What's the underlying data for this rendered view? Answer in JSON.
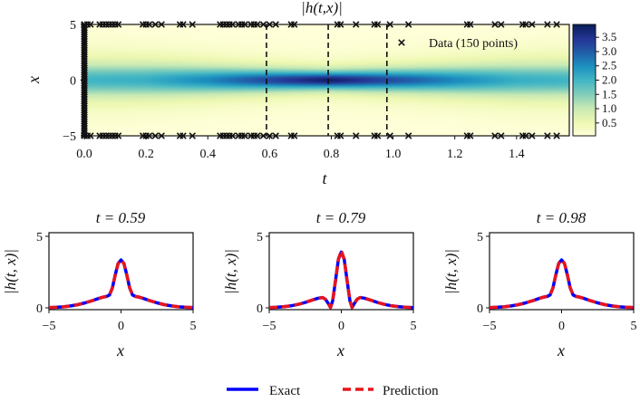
{
  "chart_data": [
    {
      "type": "heatmap",
      "title": "|h(t,x)|",
      "xlabel": "t",
      "ylabel": "x",
      "xlim": [
        0,
        1.5708
      ],
      "ylim": [
        -5,
        5
      ],
      "xticks": [
        0.0,
        0.2,
        0.4,
        0.6,
        0.8,
        1.0,
        1.2,
        1.4
      ],
      "xtick_labels": [
        "0.0",
        "0.2",
        "0.4",
        "0.6",
        "0.8",
        "1.0",
        "1.2",
        "1.4"
      ],
      "yticks": [
        5,
        0,
        -5
      ],
      "ytick_labels": [
        "5",
        "0",
        "−5"
      ],
      "colormap": "YlGnBu",
      "colorbar": {
        "range": [
          0.05,
          3.95
        ],
        "ticks": [
          0.5,
          1.0,
          1.5,
          2.0,
          2.5,
          3.0,
          3.5
        ],
        "tick_labels": [
          "0.5",
          "1.0",
          "1.5",
          "2.0",
          "2.5",
          "3.0",
          "3.5"
        ]
      },
      "peak_amplitude_along_x0": {
        "t": [
          0,
          0.2,
          0.4,
          0.59,
          0.79,
          0.98,
          1.2,
          1.4,
          1.5708
        ],
        "value": [
          2.0,
          2.1,
          2.6,
          3.3,
          4.0,
          3.3,
          2.6,
          2.1,
          2.0
        ]
      },
      "slice_lines_t": [
        0.59,
        0.79,
        0.98
      ],
      "legend": {
        "label": "Data (150 points)",
        "marker": "x",
        "position": "top-right"
      },
      "data_points": {
        "boundary_t": [
          0.0,
          0.01,
          0.02,
          0.05,
          0.06,
          0.07,
          0.08,
          0.09,
          0.1,
          0.11,
          0.19,
          0.2,
          0.21,
          0.23,
          0.25,
          0.31,
          0.32,
          0.35,
          0.44,
          0.45,
          0.46,
          0.47,
          0.48,
          0.5,
          0.51,
          0.52,
          0.54,
          0.55,
          0.56,
          0.58,
          0.6,
          0.62,
          0.67,
          0.68,
          0.82,
          0.83,
          0.88,
          0.94,
          0.95,
          0.99,
          1.05,
          1.24,
          1.25,
          1.33,
          1.35,
          1.42,
          1.43,
          1.45,
          1.5,
          1.53
        ],
        "boundary_x": [
          -5,
          5
        ],
        "initial_t": 0,
        "initial_x": [
          -4.9,
          -4.7,
          -4.5,
          -4.3,
          -4.1,
          -3.9,
          -3.7,
          -3.5,
          -3.3,
          -3.1,
          -2.9,
          -2.7,
          -2.5,
          -2.3,
          -2.1,
          -1.9,
          -1.7,
          -1.5,
          -1.3,
          -1.1,
          -0.9,
          -0.7,
          -0.5,
          -0.3,
          -0.1,
          0.1,
          0.3,
          0.5,
          0.7,
          0.9,
          1.1,
          1.3,
          1.5,
          1.7,
          1.9,
          2.1,
          2.3,
          2.5,
          2.7,
          2.9,
          3.1,
          3.3,
          3.5,
          3.7,
          3.9,
          4.1,
          4.3,
          4.5,
          4.7,
          4.9
        ]
      }
    },
    {
      "type": "line",
      "title": "t = 0.59",
      "xlabel": "x",
      "ylabel": "|h(t, x)|",
      "xlim": [
        -5,
        5
      ],
      "ylim": [
        0,
        5
      ],
      "xticks": [
        -5,
        0,
        5
      ],
      "xtick_labels": [
        "−5",
        "0",
        "5"
      ],
      "yticks": [
        0,
        5
      ],
      "ytick_labels": [
        "0",
        "5"
      ],
      "x": [
        -5,
        -4.5,
        -4,
        -3.5,
        -3,
        -2.5,
        -2,
        -1.5,
        -1.2,
        -1,
        -0.8,
        -0.6,
        -0.4,
        -0.2,
        0,
        0.2,
        0.4,
        0.6,
        0.8,
        1,
        1.2,
        1.5,
        2,
        2.5,
        3,
        3.5,
        4,
        4.5,
        5
      ],
      "series": [
        {
          "name": "Exact",
          "y": [
            0.02,
            0.04,
            0.07,
            0.13,
            0.22,
            0.35,
            0.5,
            0.68,
            0.76,
            0.8,
            0.9,
            1.4,
            2.3,
            3.1,
            3.35,
            3.1,
            2.3,
            1.4,
            0.9,
            0.8,
            0.76,
            0.68,
            0.5,
            0.35,
            0.22,
            0.13,
            0.07,
            0.04,
            0.02
          ]
        },
        {
          "name": "Prediction",
          "y": [
            0.02,
            0.04,
            0.07,
            0.13,
            0.22,
            0.35,
            0.5,
            0.68,
            0.76,
            0.8,
            0.9,
            1.4,
            2.3,
            3.1,
            3.35,
            3.1,
            2.3,
            1.4,
            0.9,
            0.8,
            0.76,
            0.68,
            0.5,
            0.35,
            0.22,
            0.13,
            0.07,
            0.04,
            0.02
          ]
        }
      ]
    },
    {
      "type": "line",
      "title": "t = 0.79",
      "xlabel": "x",
      "ylabel": "|h(t, x)|",
      "xlim": [
        -5,
        5
      ],
      "ylim": [
        0,
        5
      ],
      "xticks": [
        -5,
        0,
        5
      ],
      "xtick_labels": [
        "−5",
        "0",
        "5"
      ],
      "yticks": [
        0,
        5
      ],
      "ytick_labels": [
        "0",
        "5"
      ],
      "x": [
        -5,
        -4.5,
        -4,
        -3.5,
        -3,
        -2.5,
        -2,
        -1.6,
        -1.3,
        -1.1,
        -0.9,
        -0.75,
        -0.6,
        -0.4,
        -0.2,
        0,
        0.2,
        0.4,
        0.6,
        0.75,
        0.9,
        1.1,
        1.3,
        1.6,
        2,
        2.5,
        3,
        3.5,
        4,
        4.5,
        5
      ],
      "series": [
        {
          "name": "Exact",
          "y": [
            0.02,
            0.04,
            0.08,
            0.14,
            0.24,
            0.38,
            0.55,
            0.68,
            0.72,
            0.6,
            0.3,
            0.02,
            0.5,
            1.9,
            3.4,
            3.9,
            3.4,
            1.9,
            0.5,
            0.02,
            0.3,
            0.6,
            0.72,
            0.68,
            0.55,
            0.38,
            0.24,
            0.14,
            0.08,
            0.04,
            0.02
          ]
        },
        {
          "name": "Prediction",
          "y": [
            0.02,
            0.04,
            0.08,
            0.14,
            0.24,
            0.38,
            0.55,
            0.68,
            0.72,
            0.6,
            0.3,
            0.02,
            0.5,
            1.9,
            3.4,
            4.0,
            3.4,
            1.9,
            0.5,
            0.02,
            0.3,
            0.6,
            0.72,
            0.68,
            0.55,
            0.38,
            0.24,
            0.14,
            0.08,
            0.04,
            0.02
          ]
        }
      ]
    },
    {
      "type": "line",
      "title": "t = 0.98",
      "xlabel": "x",
      "ylabel": "|h(t, x)|",
      "xlim": [
        -5,
        5
      ],
      "ylim": [
        0,
        5
      ],
      "xticks": [
        -5,
        0,
        5
      ],
      "xtick_labels": [
        "−5",
        "0",
        "5"
      ],
      "yticks": [
        0,
        5
      ],
      "ytick_labels": [
        "0",
        "5"
      ],
      "x": [
        -5,
        -4.5,
        -4,
        -3.5,
        -3,
        -2.5,
        -2,
        -1.5,
        -1.2,
        -1,
        -0.8,
        -0.6,
        -0.4,
        -0.2,
        0,
        0.2,
        0.4,
        0.6,
        0.8,
        1,
        1.2,
        1.5,
        2,
        2.5,
        3,
        3.5,
        4,
        4.5,
        5
      ],
      "series": [
        {
          "name": "Exact",
          "y": [
            0.02,
            0.04,
            0.07,
            0.13,
            0.22,
            0.35,
            0.5,
            0.68,
            0.76,
            0.8,
            0.9,
            1.4,
            2.3,
            3.1,
            3.35,
            3.1,
            2.3,
            1.4,
            0.9,
            0.8,
            0.76,
            0.68,
            0.5,
            0.35,
            0.22,
            0.13,
            0.07,
            0.04,
            0.02
          ]
        },
        {
          "name": "Prediction",
          "y": [
            0.02,
            0.04,
            0.07,
            0.13,
            0.22,
            0.35,
            0.5,
            0.68,
            0.76,
            0.8,
            0.9,
            1.4,
            2.3,
            3.1,
            3.35,
            3.1,
            2.3,
            1.4,
            0.9,
            0.8,
            0.76,
            0.68,
            0.5,
            0.35,
            0.22,
            0.13,
            0.07,
            0.04,
            0.02
          ]
        }
      ]
    }
  ],
  "legend": {
    "position": "bottom-center",
    "items": [
      {
        "label": "Exact",
        "color": "#0000ff",
        "style": "solid"
      },
      {
        "label": "Prediction",
        "color": "#e8141c",
        "style": "dashed"
      }
    ]
  }
}
